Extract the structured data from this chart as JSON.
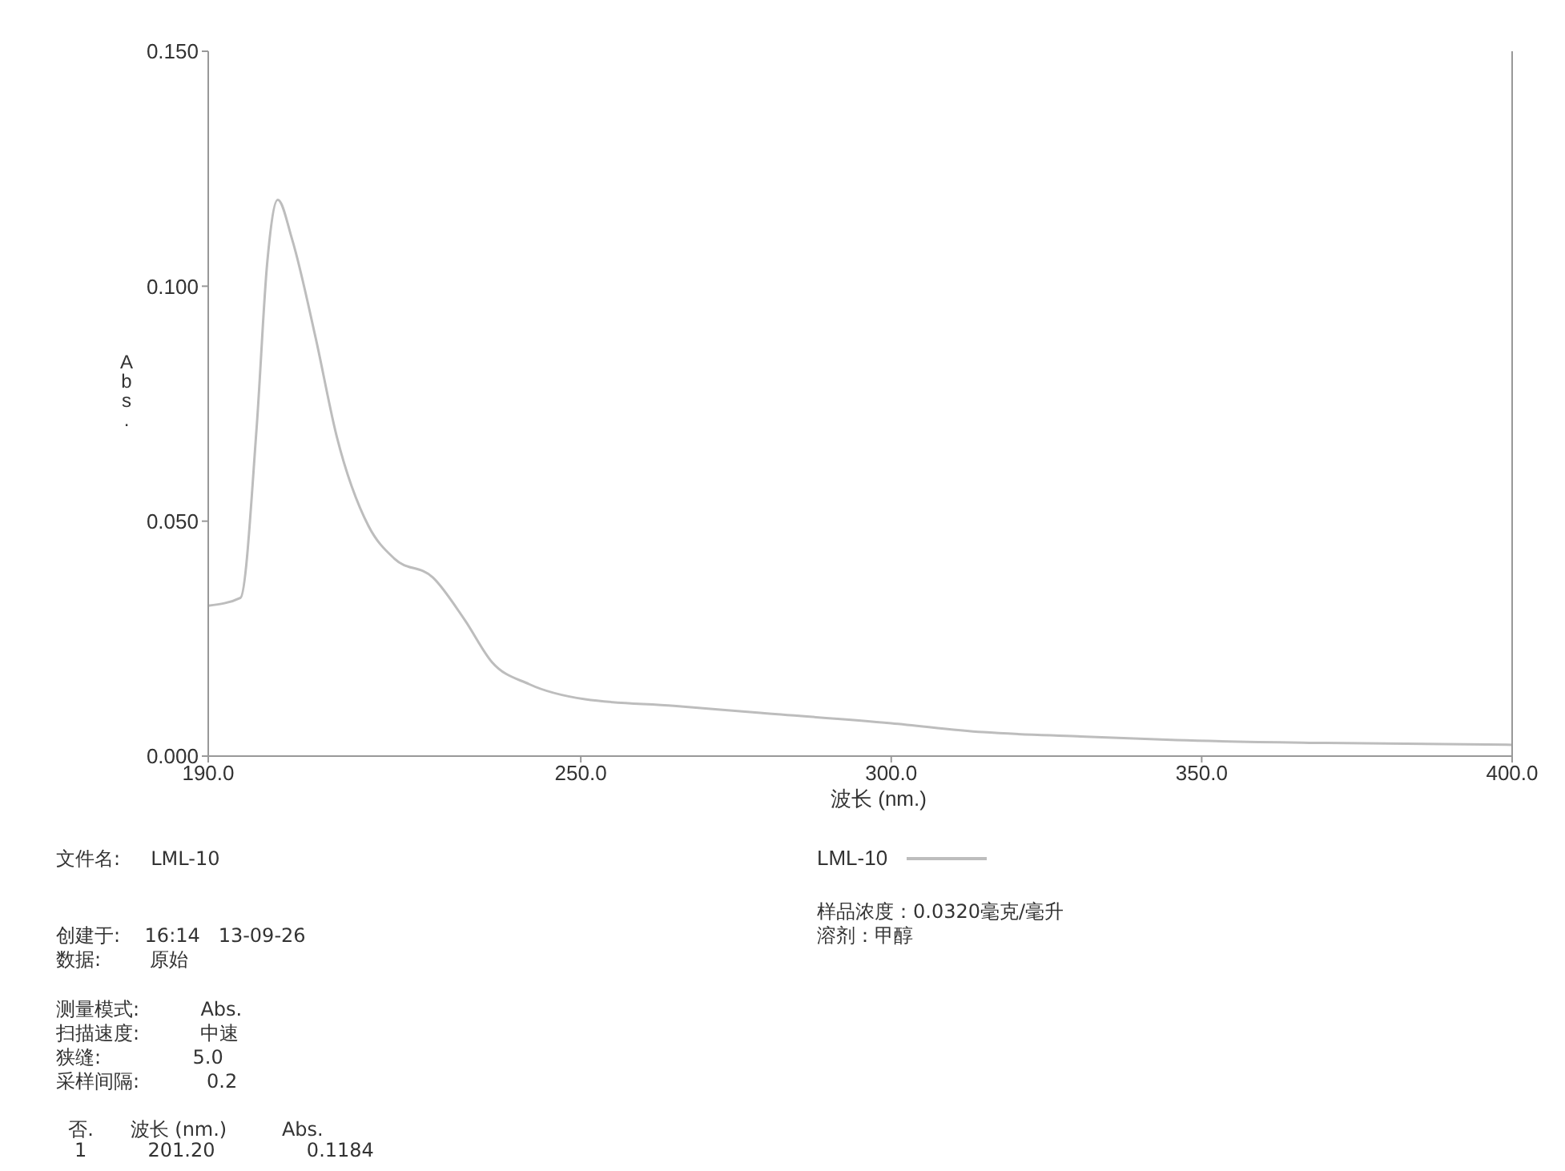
{
  "chart_data": {
    "type": "line",
    "xlabel": "波长 (nm.)",
    "ylabel": "Abs.",
    "series": [
      {
        "name": "LML-10",
        "color": "#bdbdbd",
        "x": [
          190,
          195.2,
          197.8,
          199.5,
          201.2,
          203.5,
          207.3,
          210.7,
          215.8,
          220,
          226.2,
          231.3,
          235.7,
          241.7,
          250.7,
          265,
          278.9,
          300,
          314.8,
          330,
          346,
          370,
          400
        ],
        "values": [
          0.032,
          0.0337,
          0.07,
          0.105,
          0.1184,
          0.11,
          0.089,
          0.068,
          0.049,
          0.042,
          0.038,
          0.029,
          0.02,
          0.0153,
          0.0121,
          0.0107,
          0.0092,
          0.007,
          0.0051,
          0.0042,
          0.0034,
          0.0028,
          0.0024
        ]
      }
    ],
    "xlim": [
      190,
      400
    ],
    "xticks": [
      {
        "value": 190,
        "label": "190.0"
      },
      {
        "value": 250,
        "label": "250.0"
      },
      {
        "value": 300,
        "label": "300.0"
      },
      {
        "value": 350,
        "label": "350.0"
      },
      {
        "value": 400,
        "label": "400.0"
      }
    ],
    "ylim": [
      0,
      0.15
    ],
    "yticks": [
      {
        "value": 0,
        "label": "0.000"
      },
      {
        "value": 0.05,
        "label": "0.050"
      },
      {
        "value": 0.1,
        "label": "0.100"
      },
      {
        "value": 0.15,
        "label": "0.150"
      }
    ],
    "legend": "bottom",
    "grid": false,
    "marker": "none",
    "line_style": "solid",
    "annotations": [
      "文件名:     LML-10",
      "创建于:    16:14   13-09-26",
      "数据:        原始",
      "测量模式:          Abs.",
      "扫描速度:          中速",
      "狭缝:               5.0",
      "采样间隔:           0.2",
      "  否.      波长 (nm.)         Abs.",
      "   1          201.20               0.1184",
      "样品浓度：0.0320毫克/毫升",
      "溶剂：甲醇"
    ]
  }
}
